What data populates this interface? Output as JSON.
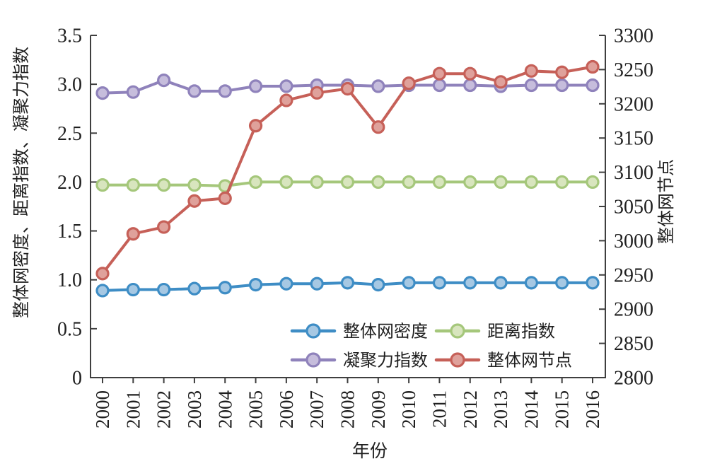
{
  "chart_data": {
    "type": "line",
    "title": "",
    "xlabel": "年份",
    "ylabel_left": "整体网密度、距离指数、凝聚力指数",
    "ylabel_right": "整体网节点",
    "x": [
      2000,
      2001,
      2002,
      2003,
      2004,
      2005,
      2006,
      2007,
      2008,
      2009,
      2010,
      2011,
      2012,
      2013,
      2014,
      2015,
      2016
    ],
    "ylim_left": [
      0,
      3.5
    ],
    "yticks_left": [
      "0",
      "0.5",
      "1.0",
      "1.5",
      "2.0",
      "2.5",
      "3.0",
      "3.5"
    ],
    "ylim_right": [
      2800,
      3300
    ],
    "yticks_right": [
      2800,
      2850,
      2900,
      2950,
      3000,
      3050,
      3100,
      3150,
      3200,
      3250,
      3300
    ],
    "grid": false,
    "legend_position": "inside-bottom-center",
    "legend_layout": "2x2",
    "axis_color": "#3f3f3f",
    "text_color": "#1f1f1f",
    "series": [
      {
        "name": "整体网密度",
        "axis": "left",
        "color": "#3e8dc5",
        "marker_fill": "#a6c8e3",
        "values": [
          0.89,
          0.9,
          0.9,
          0.91,
          0.92,
          0.95,
          0.96,
          0.96,
          0.97,
          0.95,
          0.97,
          0.97,
          0.97,
          0.97,
          0.97,
          0.97,
          0.97
        ]
      },
      {
        "name": "距离指数",
        "axis": "left",
        "color": "#a5c77b",
        "marker_fill": "#d8e5be",
        "values": [
          1.97,
          1.97,
          1.97,
          1.97,
          1.96,
          2.0,
          2.0,
          2.0,
          2.0,
          2.0,
          2.0,
          2.0,
          2.0,
          2.0,
          2.0,
          2.0,
          2.0
        ]
      },
      {
        "name": "凝聚力指数",
        "axis": "left",
        "color": "#8f82bb",
        "marker_fill": "#c6bddc",
        "values": [
          2.91,
          2.92,
          3.04,
          2.93,
          2.93,
          2.98,
          2.98,
          2.99,
          2.99,
          2.98,
          2.99,
          2.99,
          2.99,
          2.98,
          2.99,
          2.99,
          2.99
        ]
      },
      {
        "name": "整体网节点",
        "axis": "right",
        "color": "#c66058",
        "marker_fill": "#dfa19b",
        "values": [
          2952,
          3010,
          3020,
          3058,
          3062,
          3168,
          3205,
          3216,
          3222,
          3166,
          3230,
          3244,
          3244,
          3232,
          3248,
          3246,
          3254
        ]
      }
    ]
  }
}
